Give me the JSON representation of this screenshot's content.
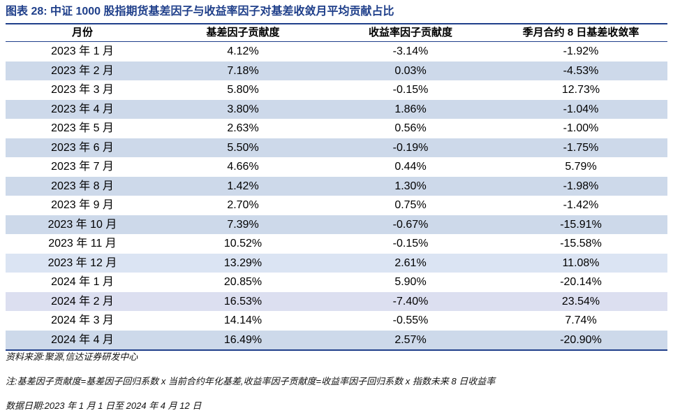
{
  "title": "图表 28:  中证 1000 股指期货基差因子与收益率因子对基差收敛月平均贡献占比",
  "table": {
    "headers": [
      "月份",
      "基差因子贡献度",
      "收益率因子贡献度",
      "季月合约 8 日基差收敛率"
    ],
    "rows": [
      [
        "2023 年 1 月",
        "4.12%",
        "-3.14%",
        "-1.92%"
      ],
      [
        "2023 年 2 月",
        "7.18%",
        "0.03%",
        "-4.53%"
      ],
      [
        "2023 年 3 月",
        "5.80%",
        "-0.15%",
        "12.73%"
      ],
      [
        "2023 年 4 月",
        "3.80%",
        "1.86%",
        "-1.04%"
      ],
      [
        "2023 年 5 月",
        "2.63%",
        "0.56%",
        "-1.00%"
      ],
      [
        "2023 年 6 月",
        "5.50%",
        "-0.19%",
        "-1.75%"
      ],
      [
        "2023 年 7 月",
        "4.66%",
        "0.44%",
        "5.79%"
      ],
      [
        "2023 年 8 月",
        "1.42%",
        "1.30%",
        "-1.98%"
      ],
      [
        "2023 年 9 月",
        "2.70%",
        "0.75%",
        "-1.42%"
      ],
      [
        "2023 年 10 月",
        "7.39%",
        "-0.67%",
        "-15.91%"
      ],
      [
        "2023 年 11 月",
        "10.52%",
        "-0.15%",
        "-15.58%"
      ],
      [
        "2023 年 12 月",
        "13.29%",
        "2.61%",
        "11.08%"
      ],
      [
        "2024 年 1 月",
        "20.85%",
        "5.90%",
        "-20.14%"
      ],
      [
        "2024 年 2 月",
        "16.53%",
        "-7.40%",
        "23.54%"
      ],
      [
        "2024 年 3 月",
        "14.14%",
        "-0.55%",
        "7.74%"
      ],
      [
        "2024 年 4 月",
        "16.49%",
        "2.57%",
        "-20.90%"
      ]
    ]
  },
  "notes": {
    "source": "资料来源:聚源,信达证券研发中心",
    "note": "注:基差因子贡献度=基差因子回归系数 x 当前合约年化基差,收益率因子贡献度=收益率因子回归系数 x 指数未来 8 日收益率",
    "date": "数据日期:2023 年 1 月 1 日至 2024 年 4 月 12 日"
  }
}
